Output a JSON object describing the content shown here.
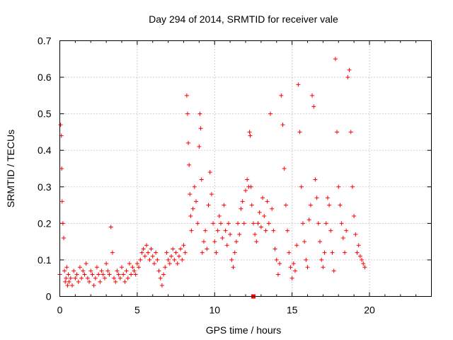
{
  "chart_data": {
    "type": "scatter",
    "title": "Day 294 of 2014, SRMTID for receiver vale",
    "xlabel": "GPS time / hours",
    "ylabel": "SRMTID / TECUs",
    "xlim": [
      0,
      24
    ],
    "ylim": [
      0,
      0.7
    ],
    "xticks": [
      0,
      5,
      10,
      15,
      20
    ],
    "xtick_labels": [
      "0",
      "5",
      "10",
      "15",
      "20"
    ],
    "yticks": [
      0,
      0.1,
      0.2,
      0.3,
      0.4,
      0.5,
      0.6,
      0.7
    ],
    "ytick_labels": [
      "0",
      "0.1",
      "0.2",
      "0.3",
      "0.4",
      "0.5",
      "0.6",
      "0.7"
    ],
    "grid": true,
    "marker": "+",
    "color": "#ff0000",
    "series": [
      {
        "name": "SRMTID",
        "note": "dense scatter of red '+' markers; representative sampled values",
        "x": [
          0.0,
          0.05,
          0.1,
          0.12,
          0.15,
          0.2,
          0.25,
          0.3,
          0.35,
          0.4,
          0.45,
          0.5,
          0.55,
          0.6,
          0.7,
          0.8,
          0.9,
          1.0,
          1.1,
          1.2,
          1.3,
          1.4,
          1.5,
          1.6,
          1.7,
          1.8,
          1.9,
          2.0,
          2.1,
          2.2,
          2.3,
          2.4,
          2.5,
          2.6,
          2.7,
          2.8,
          2.9,
          3.0,
          3.1,
          3.2,
          3.3,
          3.4,
          3.5,
          3.6,
          3.7,
          3.8,
          3.9,
          4.0,
          4.1,
          4.2,
          4.3,
          4.4,
          4.5,
          4.6,
          4.7,
          4.8,
          4.9,
          5.0,
          5.1,
          5.2,
          5.3,
          5.4,
          5.5,
          5.6,
          5.7,
          5.8,
          5.9,
          6.0,
          6.1,
          6.2,
          6.3,
          6.4,
          6.5,
          6.6,
          6.7,
          6.8,
          6.9,
          7.0,
          7.1,
          7.2,
          7.3,
          7.4,
          7.5,
          7.6,
          7.7,
          7.8,
          7.9,
          8.0,
          8.1,
          8.2,
          8.25,
          8.3,
          8.35,
          8.4,
          8.45,
          8.5,
          8.6,
          8.7,
          8.8,
          8.9,
          9.0,
          9.05,
          9.1,
          9.15,
          9.2,
          9.3,
          9.4,
          9.5,
          9.6,
          9.7,
          9.8,
          9.9,
          10.0,
          10.1,
          10.2,
          10.3,
          10.4,
          10.5,
          10.6,
          10.7,
          10.8,
          10.9,
          11.0,
          11.1,
          11.2,
          11.3,
          11.4,
          11.5,
          11.6,
          11.7,
          11.8,
          11.9,
          12.0,
          12.1,
          12.2,
          12.25,
          12.3,
          12.35,
          12.4,
          12.5,
          12.6,
          12.7,
          12.8,
          12.9,
          13.0,
          13.1,
          13.2,
          13.3,
          13.4,
          13.5,
          13.6,
          13.7,
          13.8,
          13.9,
          14.0,
          14.1,
          14.2,
          14.3,
          14.4,
          14.5,
          14.6,
          14.7,
          14.8,
          14.9,
          15.0,
          15.1,
          15.2,
          15.3,
          15.4,
          15.5,
          15.6,
          15.7,
          15.8,
          15.9,
          16.0,
          16.1,
          16.2,
          16.3,
          16.4,
          16.5,
          16.6,
          16.7,
          16.8,
          16.9,
          17.0,
          17.1,
          17.2,
          17.3,
          17.4,
          17.5,
          17.6,
          17.7,
          17.8,
          17.9,
          18.0,
          18.1,
          18.2,
          18.3,
          18.4,
          18.5,
          18.6,
          18.7,
          18.8,
          18.9,
          19.0,
          19.1,
          19.2,
          19.3,
          19.4,
          19.5,
          19.6,
          19.7
        ],
        "y": [
          0.06,
          0.47,
          0.44,
          0.35,
          0.26,
          0.2,
          0.16,
          0.07,
          0.04,
          0.05,
          0.08,
          0.03,
          0.06,
          0.04,
          0.05,
          0.03,
          0.07,
          0.05,
          0.06,
          0.04,
          0.08,
          0.05,
          0.07,
          0.06,
          0.09,
          0.05,
          0.04,
          0.07,
          0.06,
          0.03,
          0.05,
          0.08,
          0.06,
          0.04,
          0.07,
          0.06,
          0.05,
          0.09,
          0.07,
          0.06,
          0.19,
          0.12,
          0.05,
          0.04,
          0.07,
          0.06,
          0.05,
          0.08,
          0.06,
          0.04,
          0.07,
          0.05,
          0.09,
          0.06,
          0.08,
          0.07,
          0.06,
          0.09,
          0.08,
          0.1,
          0.12,
          0.13,
          0.11,
          0.14,
          0.12,
          0.1,
          0.13,
          0.11,
          0.09,
          0.12,
          0.1,
          0.07,
          0.05,
          0.03,
          0.06,
          0.08,
          0.12,
          0.1,
          0.09,
          0.11,
          0.13,
          0.1,
          0.12,
          0.09,
          0.11,
          0.13,
          0.1,
          0.14,
          0.12,
          0.55,
          0.5,
          0.42,
          0.36,
          0.28,
          0.22,
          0.18,
          0.24,
          0.3,
          0.26,
          0.2,
          0.41,
          0.5,
          0.46,
          0.32,
          0.12,
          0.15,
          0.18,
          0.13,
          0.25,
          0.34,
          0.28,
          0.2,
          0.15,
          0.12,
          0.18,
          0.22,
          0.2,
          0.16,
          0.25,
          0.18,
          0.14,
          0.2,
          0.17,
          0.1,
          0.08,
          0.12,
          0.15,
          0.2,
          0.17,
          0.24,
          0.26,
          0.2,
          0.29,
          0.32,
          0.3,
          0.45,
          0.44,
          0.3,
          0.25,
          0.2,
          0.17,
          0.15,
          0.2,
          0.23,
          0.19,
          0.27,
          0.22,
          0.18,
          0.26,
          0.2,
          0.5,
          0.24,
          0.18,
          0.13,
          0.1,
          0.06,
          0.09,
          0.55,
          0.47,
          0.35,
          0.25,
          0.18,
          0.12,
          0.08,
          0.05,
          0.09,
          0.07,
          0.14,
          0.58,
          0.45,
          0.3,
          0.2,
          0.15,
          0.1,
          0.08,
          0.21,
          0.25,
          0.55,
          0.52,
          0.32,
          0.27,
          0.2,
          0.15,
          0.1,
          0.08,
          0.12,
          0.2,
          0.27,
          0.25,
          0.18,
          0.12,
          0.07,
          0.65,
          0.45,
          0.3,
          0.25,
          0.2,
          0.16,
          0.12,
          0.18,
          0.6,
          0.62,
          0.45,
          0.3,
          0.22,
          0.17,
          0.12,
          0.14,
          0.11,
          0.1,
          0.09,
          0.08
        ]
      }
    ],
    "outlier_square": {
      "x": 12.5,
      "y": 0.0
    }
  }
}
